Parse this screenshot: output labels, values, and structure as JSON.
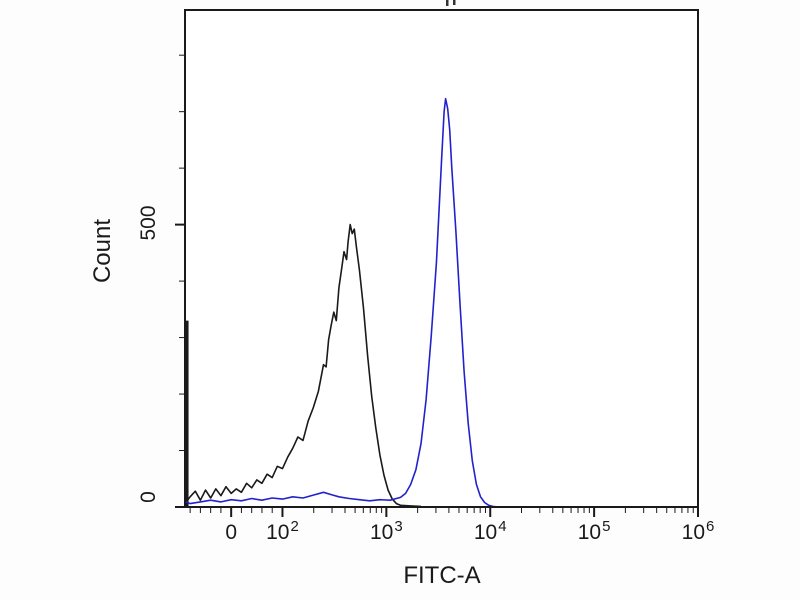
{
  "chart_data": {
    "type": "line",
    "chart_kind": "flow-cytometry-histogram-overlay",
    "title": "",
    "xlabel": "FITC-A",
    "ylabel": "Count",
    "grid": false,
    "legend": "none",
    "x_axis": {
      "scale": "biexponential",
      "ticks": [
        {
          "base": "0",
          "exp": "",
          "frac": 0.09,
          "value": 0
        },
        {
          "base": "10",
          "exp": "2",
          "frac": 0.19,
          "value": 100
        },
        {
          "base": "10",
          "exp": "3",
          "frac": 0.3925,
          "value": 1000
        },
        {
          "base": "10",
          "exp": "4",
          "frac": 0.595,
          "value": 10000
        },
        {
          "base": "10",
          "exp": "5",
          "frac": 0.7975,
          "value": 100000
        },
        {
          "base": "10",
          "exp": "6",
          "frac": 1.0,
          "value": 1000000
        }
      ]
    },
    "y_axis": {
      "max": 880,
      "major_ticks": [
        {
          "label": "0",
          "value": 0
        },
        {
          "label": "500",
          "value": 500
        }
      ],
      "minor_tick_values": [
        100,
        200,
        300,
        400,
        600,
        700,
        800
      ]
    },
    "series": [
      {
        "name": "control-histogram-black",
        "color": "#1a1a1a",
        "peak_count": 500,
        "peak_x_approx": 500,
        "edge_spike": {
          "frac": 0.004,
          "count": 330
        },
        "points": [
          [
            0.0,
            6
          ],
          [
            0.01,
            18
          ],
          [
            0.02,
            28
          ],
          [
            0.03,
            12
          ],
          [
            0.04,
            30
          ],
          [
            0.05,
            16
          ],
          [
            0.06,
            32
          ],
          [
            0.07,
            20
          ],
          [
            0.08,
            36
          ],
          [
            0.09,
            24
          ],
          [
            0.1,
            32
          ],
          [
            0.11,
            26
          ],
          [
            0.12,
            42
          ],
          [
            0.13,
            34
          ],
          [
            0.14,
            48
          ],
          [
            0.15,
            42
          ],
          [
            0.16,
            58
          ],
          [
            0.17,
            52
          ],
          [
            0.18,
            72
          ],
          [
            0.19,
            68
          ],
          [
            0.2,
            88
          ],
          [
            0.21,
            104
          ],
          [
            0.22,
            124
          ],
          [
            0.23,
            118
          ],
          [
            0.24,
            152
          ],
          [
            0.25,
            176
          ],
          [
            0.26,
            205
          ],
          [
            0.265,
            228
          ],
          [
            0.27,
            252
          ],
          [
            0.275,
            248
          ],
          [
            0.28,
            296
          ],
          [
            0.285,
            322
          ],
          [
            0.29,
            345
          ],
          [
            0.295,
            330
          ],
          [
            0.3,
            388
          ],
          [
            0.305,
            420
          ],
          [
            0.31,
            452
          ],
          [
            0.315,
            438
          ],
          [
            0.318,
            470
          ],
          [
            0.322,
            500
          ],
          [
            0.326,
            484
          ],
          [
            0.33,
            492
          ],
          [
            0.334,
            462
          ],
          [
            0.34,
            420
          ],
          [
            0.348,
            352
          ],
          [
            0.356,
            268
          ],
          [
            0.364,
            196
          ],
          [
            0.372,
            140
          ],
          [
            0.38,
            92
          ],
          [
            0.388,
            56
          ],
          [
            0.396,
            30
          ],
          [
            0.404,
            14
          ],
          [
            0.412,
            6
          ],
          [
            0.42,
            3
          ],
          [
            0.44,
            2
          ],
          [
            0.46,
            1
          ]
        ]
      },
      {
        "name": "stained-histogram-blue",
        "color": "#2222cc",
        "peak_count": 723,
        "peak_x_approx": 4000,
        "points": [
          [
            0.0,
            10
          ],
          [
            0.01,
            6
          ],
          [
            0.03,
            9
          ],
          [
            0.05,
            12
          ],
          [
            0.07,
            9
          ],
          [
            0.09,
            13
          ],
          [
            0.11,
            11
          ],
          [
            0.13,
            15
          ],
          [
            0.15,
            12
          ],
          [
            0.17,
            16
          ],
          [
            0.19,
            14
          ],
          [
            0.21,
            18
          ],
          [
            0.23,
            16
          ],
          [
            0.25,
            21
          ],
          [
            0.27,
            26
          ],
          [
            0.285,
            22
          ],
          [
            0.3,
            18
          ],
          [
            0.32,
            15
          ],
          [
            0.34,
            13
          ],
          [
            0.36,
            11
          ],
          [
            0.38,
            13
          ],
          [
            0.4,
            12
          ],
          [
            0.42,
            17
          ],
          [
            0.43,
            24
          ],
          [
            0.44,
            40
          ],
          [
            0.45,
            66
          ],
          [
            0.46,
            112
          ],
          [
            0.47,
            190
          ],
          [
            0.48,
            302
          ],
          [
            0.49,
            432
          ],
          [
            0.495,
            520
          ],
          [
            0.5,
            612
          ],
          [
            0.505,
            700
          ],
          [
            0.508,
            723
          ],
          [
            0.512,
            705
          ],
          [
            0.516,
            668
          ],
          [
            0.52,
            600
          ],
          [
            0.528,
            488
          ],
          [
            0.536,
            360
          ],
          [
            0.544,
            240
          ],
          [
            0.552,
            148
          ],
          [
            0.56,
            82
          ],
          [
            0.568,
            40
          ],
          [
            0.576,
            18
          ],
          [
            0.584,
            8
          ],
          [
            0.592,
            3
          ],
          [
            0.6,
            1
          ],
          [
            0.61,
            0
          ]
        ]
      }
    ]
  }
}
